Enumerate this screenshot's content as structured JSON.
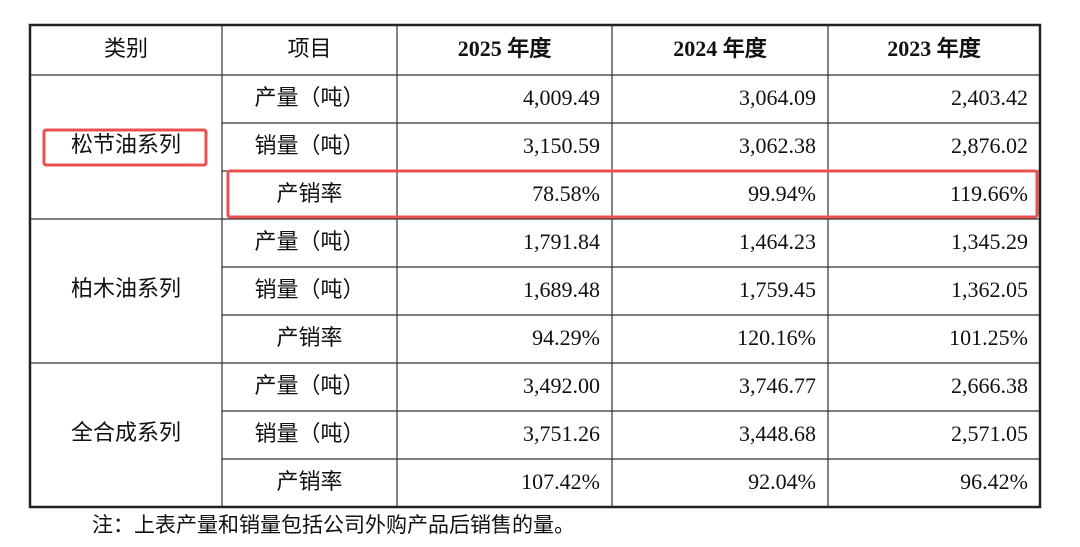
{
  "table": {
    "header": [
      "类别",
      "项目",
      "2025 年度",
      "2024 年度",
      "2023 年度"
    ],
    "groups": [
      {
        "category": "松节油系列",
        "rows": [
          {
            "item": "产量（吨）",
            "values": [
              "4,009.49",
              "3,064.09",
              "2,403.42"
            ]
          },
          {
            "item": "销量（吨）",
            "values": [
              "3,150.59",
              "3,062.38",
              "2,876.02"
            ]
          },
          {
            "item": "产销率",
            "values": [
              "78.58%",
              "99.94%",
              "119.66%"
            ]
          }
        ]
      },
      {
        "category": "柏木油系列",
        "rows": [
          {
            "item": "产量（吨）",
            "values": [
              "1,791.84",
              "1,464.23",
              "1,345.29"
            ]
          },
          {
            "item": "销量（吨）",
            "values": [
              "1,689.48",
              "1,759.45",
              "1,362.05"
            ]
          },
          {
            "item": "产销率",
            "values": [
              "94.29%",
              "120.16%",
              "101.25%"
            ]
          }
        ]
      },
      {
        "category": "全合成系列",
        "rows": [
          {
            "item": "产量（吨）",
            "values": [
              "3,492.00",
              "3,746.77",
              "2,666.38"
            ]
          },
          {
            "item": "销量（吨）",
            "values": [
              "3,751.26",
              "3,448.68",
              "2,571.05"
            ]
          },
          {
            "item": "产销率",
            "values": [
              "107.42%",
              "92.04%",
              "96.42%"
            ]
          }
        ]
      }
    ]
  },
  "note": "注：上表产量和销量包括公司外购产品后销售的量。"
}
